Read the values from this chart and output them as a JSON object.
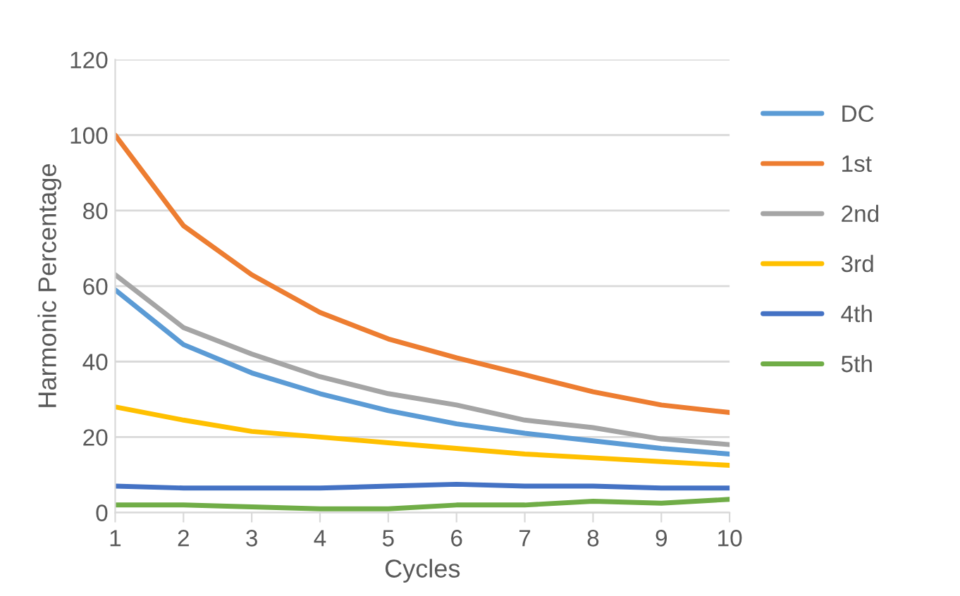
{
  "chart_data": {
    "type": "line",
    "xlabel": "Cycles",
    "ylabel": "Harmonic Percentage",
    "x": [
      1,
      2,
      3,
      4,
      5,
      6,
      7,
      8,
      9,
      10
    ],
    "xlim": [
      1,
      10
    ],
    "xticks": [
      1,
      2,
      3,
      4,
      5,
      6,
      7,
      8,
      9,
      10
    ],
    "ylim": [
      0,
      120
    ],
    "yticks": [
      0,
      20,
      40,
      60,
      80,
      100,
      120
    ],
    "grid": "y",
    "legend": "right",
    "marker": "none",
    "line_style": "solid",
    "series": [
      {
        "name": "DC",
        "color": "#5b9bd5",
        "values": [
          59,
          44.5,
          37,
          31.5,
          27,
          23.5,
          21,
          19,
          17,
          15.5
        ]
      },
      {
        "name": "1st",
        "color": "#ed7d31",
        "values": [
          100,
          76,
          63,
          53,
          46,
          41,
          36.5,
          32,
          28.5,
          26.5
        ]
      },
      {
        "name": "2nd",
        "color": "#a5a5a5",
        "values": [
          63,
          49,
          42,
          36,
          31.5,
          28.5,
          24.5,
          22.5,
          19.5,
          18
        ]
      },
      {
        "name": "3rd",
        "color": "#ffc000",
        "values": [
          28,
          24.5,
          21.5,
          20,
          18.5,
          17,
          15.5,
          14.5,
          13.5,
          12.5
        ]
      },
      {
        "name": "4th",
        "color": "#4472c4",
        "values": [
          7,
          6.5,
          6.5,
          6.5,
          7,
          7.5,
          7,
          7,
          6.5,
          6.5
        ]
      },
      {
        "name": "5th",
        "color": "#70ad47",
        "values": [
          2,
          2,
          1.5,
          1,
          1,
          2,
          2,
          3,
          2.5,
          3.5
        ]
      }
    ]
  }
}
